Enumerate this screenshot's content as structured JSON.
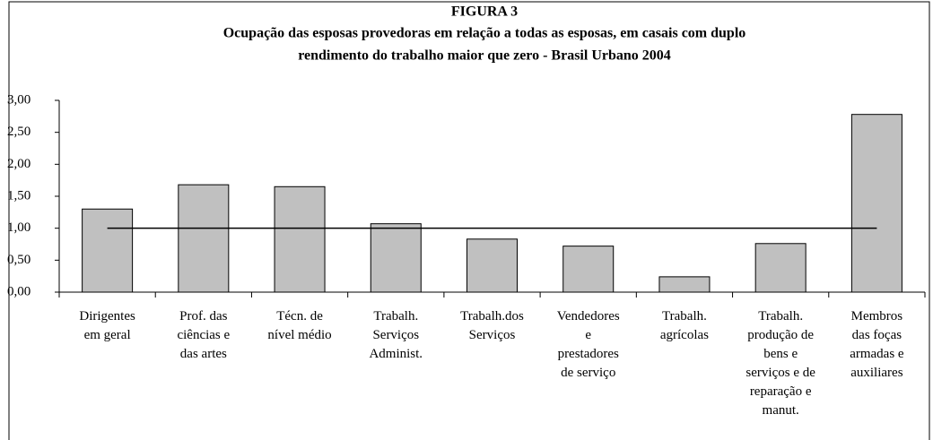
{
  "chart_data": {
    "type": "bar",
    "title": "FIGURA 3",
    "subtitle": [
      "Ocupação das esposas provedoras em relação a todas as esposas, em casais com duplo",
      "rendimento do trabalho maior que zero - Brasil Urbano 2004"
    ],
    "categories": [
      "Dirigentes\nem geral",
      "Prof. das\nciências e\ndas artes",
      "Técn. de\nnível médio",
      "Trabalh.\nServiços\nAdminist.",
      "Trabalh.dos\nServiços",
      "Vendedores\ne\nprestadores\nde serviço",
      "Trabalh.\nagrícolas",
      "Trabalh.\nprodução de\nbens e\nserviços e de\nreparação e\nmanut.",
      "Membros\ndas foças\narmadas e\nauxiliares"
    ],
    "values": [
      1.3,
      1.68,
      1.65,
      1.07,
      0.83,
      0.72,
      0.24,
      0.76,
      2.78
    ],
    "color": "#c0c0c0",
    "reference_line": 1,
    "ylim": [
      0,
      3
    ],
    "yticks": [
      {
        "value": 0,
        "label": "0,00"
      },
      {
        "value": 0.5,
        "label": "0,50"
      },
      {
        "value": 1,
        "label": "1,00"
      },
      {
        "value": 1.5,
        "label": "1,50"
      },
      {
        "value": 2,
        "label": "2,00"
      },
      {
        "value": 2.5,
        "label": "2,50"
      },
      {
        "value": 3,
        "label": "3,00"
      }
    ],
    "grid": false
  }
}
